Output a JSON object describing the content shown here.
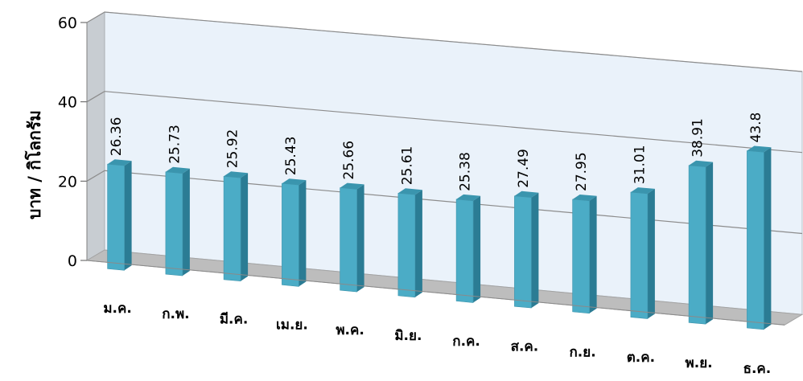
{
  "chart_data": {
    "type": "bar",
    "title": "",
    "xlabel": "",
    "ylabel": "บาท / กิโลกรัม",
    "ylim": [
      0,
      60
    ],
    "y_ticks": [
      "0",
      "20",
      "40",
      "60"
    ],
    "grid": true,
    "three_d": true,
    "categories": [
      "ม.ค.",
      "ก.พ.",
      "มี.ค.",
      "เม.ย.",
      "พ.ค.",
      "มิ.ย.",
      "ก.ค.",
      "ส.ค.",
      "ก.ย.",
      "ต.ค.",
      "พ.ย.",
      "ธ.ค."
    ],
    "values": [
      26.36,
      25.73,
      25.92,
      25.43,
      25.66,
      25.61,
      25.38,
      27.49,
      27.95,
      31.01,
      38.91,
      43.8
    ],
    "value_labels": [
      "26.36",
      "25.73",
      "25.92",
      "25.43",
      "25.66",
      "25.61",
      "25.38",
      "27.49",
      "27.95",
      "31.01",
      "38.91",
      "43.8"
    ],
    "colors": {
      "bar_front": "#4BACC6",
      "bar_side": "#2B7C94",
      "bar_top": "#3A95AE",
      "wall": "#EAF2FA",
      "wall_side": "#C8CDD2",
      "floor": "#BDBDBD",
      "grid": "#8C8C8C"
    }
  }
}
